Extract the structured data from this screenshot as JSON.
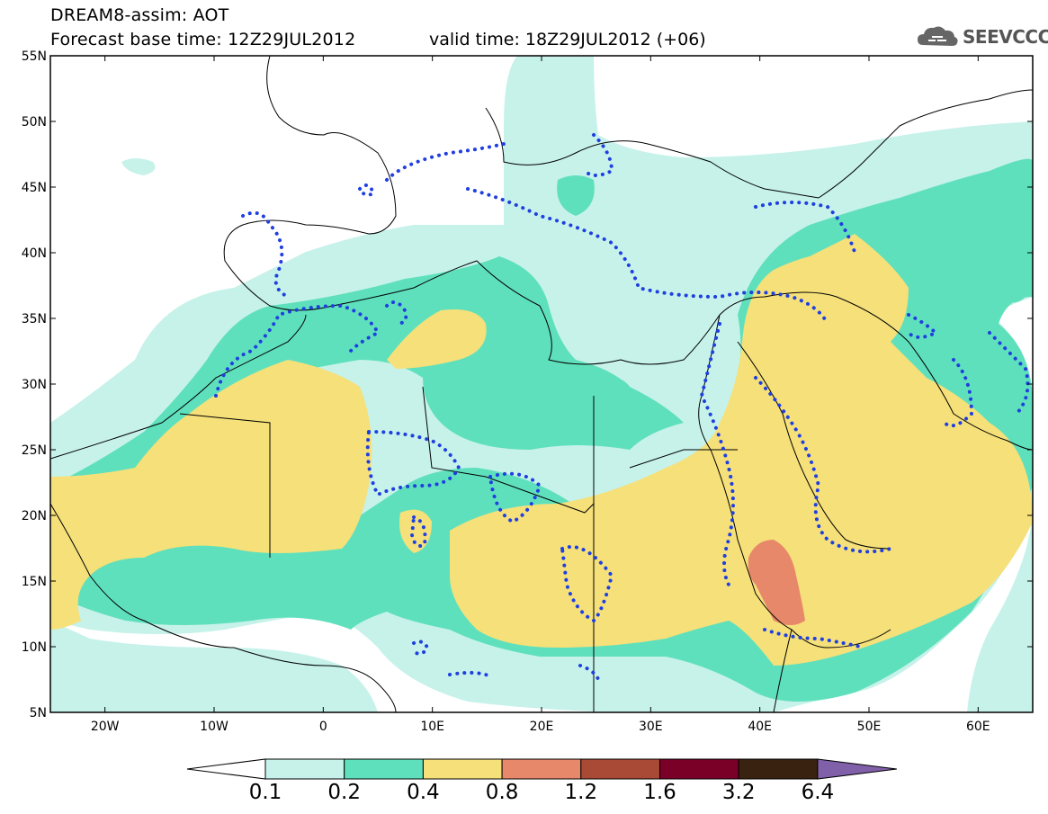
{
  "header": {
    "title_line1": "DREAM8-assim: AOT",
    "title_line2": "Forecast base time: 12Z29JUL2012",
    "valid_time": "valid time: 18Z29JUL2012 (+06)",
    "logo_text": "SEEVCCC"
  },
  "map": {
    "lon_range": [
      -25,
      65
    ],
    "lat_range": [
      5,
      55
    ],
    "lat_labels": [
      "55N",
      "50N",
      "45N",
      "40N",
      "35N",
      "30N",
      "25N",
      "20N",
      "15N",
      "10N",
      "5N"
    ],
    "lon_labels": [
      "20W",
      "10W",
      "0",
      "10E",
      "20E",
      "30E",
      "40E",
      "50E",
      "60E"
    ],
    "background_color": "#ffffff",
    "coastline_color": "#000000",
    "dotted_contour_color": "#1f3fe0"
  },
  "colorbar": {
    "levels": [
      "0.1",
      "0.2",
      "0.4",
      "0.8",
      "1.2",
      "1.6",
      "3.2",
      "6.4"
    ],
    "colors": [
      "#c6f2ea",
      "#5fe0bc",
      "#f5e07a",
      "#e8886a",
      "#a84a35",
      "#7a0028",
      "#3a2210",
      "#8060a8"
    ],
    "under_color": "#ffffff"
  }
}
